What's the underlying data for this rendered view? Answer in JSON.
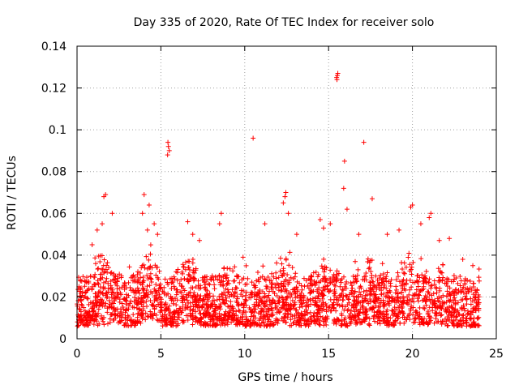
{
  "chart_data": {
    "type": "scatter",
    "title": "Day 335 of 2020, Rate Of TEC Index for receiver solo",
    "xlabel": "GPS time / hours",
    "ylabel": "ROTI / TECUs",
    "xlim": [
      0,
      25
    ],
    "ylim": [
      0,
      0.14
    ],
    "xticks": [
      0,
      5,
      10,
      15,
      20,
      25
    ],
    "yticks": [
      0,
      0.02,
      0.04,
      0.06,
      0.08,
      0.1,
      0.12,
      0.14
    ],
    "xtick_labels": [
      "0",
      "5",
      "10",
      "15",
      "20",
      "25"
    ],
    "ytick_labels": [
      "0",
      "0.02",
      "0.04",
      "0.06",
      "0.08",
      "0.1",
      "0.12",
      "0.14"
    ],
    "grid": true,
    "marker": "+",
    "color": "#ff0000",
    "series": [
      {
        "name": "ROTI",
        "x_range_hours": [
          0,
          24
        ],
        "typical_range": [
          0.006,
          0.03
        ],
        "points": [
          [
            1.6,
            0.068
          ],
          [
            1.7,
            0.069
          ],
          [
            1.5,
            0.055
          ],
          [
            1.2,
            0.052
          ],
          [
            0.9,
            0.045
          ],
          [
            2.1,
            0.06
          ],
          [
            4.0,
            0.069
          ],
          [
            4.3,
            0.064
          ],
          [
            3.9,
            0.06
          ],
          [
            4.6,
            0.055
          ],
          [
            4.8,
            0.05
          ],
          [
            4.2,
            0.052
          ],
          [
            5.4,
            0.088
          ],
          [
            5.45,
            0.092
          ],
          [
            5.5,
            0.09
          ],
          [
            5.42,
            0.094
          ],
          [
            6.6,
            0.056
          ],
          [
            6.9,
            0.05
          ],
          [
            7.3,
            0.047
          ],
          [
            8.5,
            0.055
          ],
          [
            8.6,
            0.06
          ],
          [
            9.9,
            0.039
          ],
          [
            10.5,
            0.096
          ],
          [
            11.2,
            0.055
          ],
          [
            12.3,
            0.065
          ],
          [
            12.4,
            0.068
          ],
          [
            12.45,
            0.07
          ],
          [
            12.6,
            0.06
          ],
          [
            13.1,
            0.05
          ],
          [
            14.5,
            0.057
          ],
          [
            14.7,
            0.053
          ],
          [
            15.1,
            0.055
          ],
          [
            15.5,
            0.124
          ],
          [
            15.52,
            0.126
          ],
          [
            15.55,
            0.127
          ],
          [
            15.48,
            0.125
          ],
          [
            15.9,
            0.072
          ],
          [
            15.95,
            0.085
          ],
          [
            16.1,
            0.062
          ],
          [
            16.8,
            0.05
          ],
          [
            17.1,
            0.094
          ],
          [
            17.6,
            0.067
          ],
          [
            18.5,
            0.05
          ],
          [
            19.2,
            0.052
          ],
          [
            19.9,
            0.063
          ],
          [
            20.0,
            0.064
          ],
          [
            20.5,
            0.055
          ],
          [
            21.0,
            0.058
          ],
          [
            21.1,
            0.06
          ],
          [
            21.6,
            0.047
          ],
          [
            22.2,
            0.048
          ],
          [
            23.0,
            0.038
          ],
          [
            23.6,
            0.035
          ]
        ]
      }
    ]
  }
}
